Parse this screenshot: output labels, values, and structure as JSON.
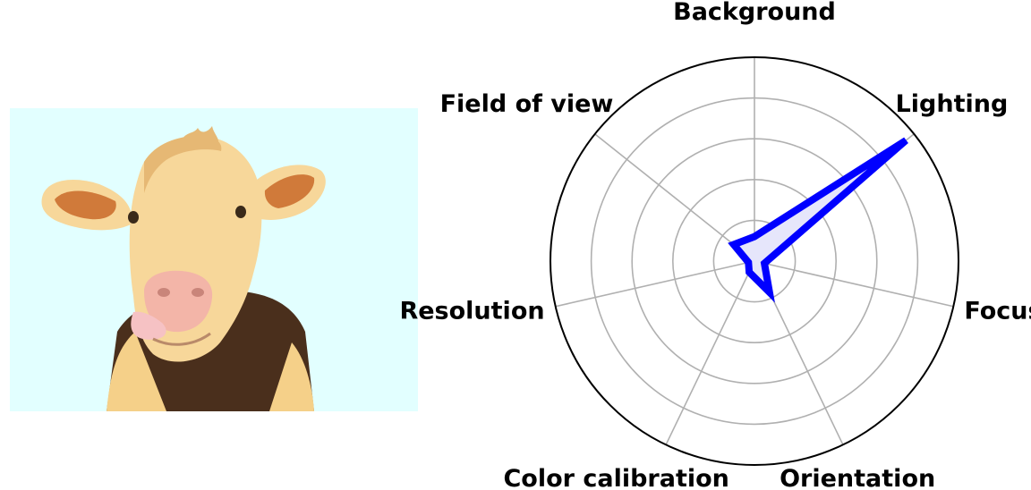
{
  "image": {
    "subject": "cow-photo",
    "colors": {
      "sky": "#e2ffff",
      "coat": "#f7d79a",
      "coat_shadow": "#e6b874",
      "dark_patch": "#4a2f1c",
      "ear_inner": "#d07a3a",
      "nose": "#f3b5a8"
    }
  },
  "chart_data": {
    "type": "radar",
    "axes": [
      "Background",
      "Lighting",
      "Focus",
      "Orientation",
      "Color calibration",
      "Resolution",
      "Field of view"
    ],
    "values": [
      0.12,
      0.95,
      0.05,
      0.17,
      0.06,
      0.03,
      0.13
    ],
    "range": [
      0,
      1
    ],
    "rings": 5,
    "grid": true,
    "series_color": "#0000ff",
    "fill_color": "#e6e6fb"
  }
}
